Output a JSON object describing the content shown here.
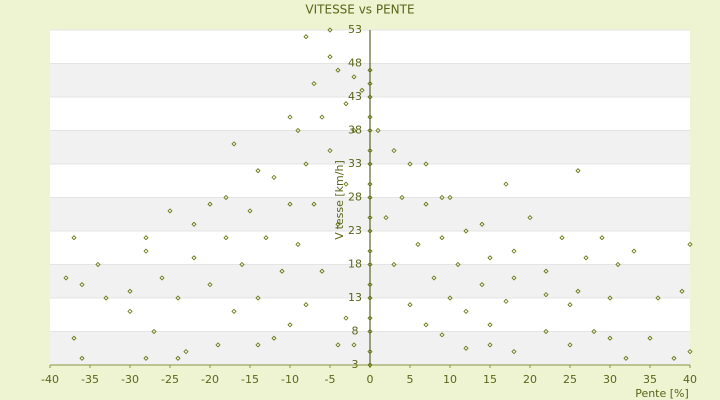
{
  "chart_data": {
    "type": "scatter",
    "title": "VITESSE vs PENTE",
    "xlabel": "Pente [%]",
    "ylabel": "Vitesse [km/h]",
    "color": "#5a6e00",
    "grid": true,
    "xlim": [
      -40,
      40
    ],
    "xticks": [
      -40,
      -35,
      -30,
      -25,
      -20,
      -15,
      -10,
      -5,
      0,
      5,
      10,
      15,
      20,
      25,
      30,
      35,
      40
    ],
    "ylim": [
      3,
      53
    ],
    "yticks": [
      3,
      8,
      13,
      18,
      23,
      28,
      33,
      38,
      43,
      48,
      53
    ],
    "x": [
      0,
      0,
      0,
      0,
      0,
      0,
      0,
      0,
      0,
      0,
      0,
      0,
      0,
      0,
      0,
      0,
      0,
      0,
      0,
      1,
      2,
      3,
      5,
      7,
      9,
      3,
      4,
      6,
      8,
      10,
      12,
      15,
      5,
      7,
      9,
      11,
      14,
      17,
      7,
      9,
      12,
      15,
      18,
      22,
      25,
      10,
      14,
      18,
      22,
      26,
      30,
      15,
      18,
      12,
      22,
      25,
      28,
      30,
      32,
      35,
      38,
      40,
      17,
      20,
      26,
      29,
      31,
      33,
      36,
      39,
      40,
      24,
      27,
      -1,
      -2,
      -3,
      -4,
      -6,
      -8,
      -10,
      -12,
      -2,
      -3,
      -5,
      -7,
      -9,
      -11,
      -14,
      -17,
      -4,
      -6,
      -8,
      -10,
      -13,
      -16,
      -20,
      -24,
      -5,
      -7,
      -9,
      -12,
      -15,
      -18,
      -22,
      -26,
      -30,
      -10,
      -14,
      -18,
      -22,
      -28,
      -34,
      -5,
      -8,
      -17,
      -20,
      -25,
      -28,
      -37,
      -36,
      -38,
      -33,
      -30,
      -27,
      -23,
      -19,
      -37,
      -36,
      -28,
      -14,
      -24,
      -3,
      -2,
      -4
    ],
    "values": [
      3,
      5,
      8,
      10,
      13,
      15,
      18,
      20,
      23,
      25,
      28,
      30,
      33,
      35,
      38,
      40,
      43,
      45,
      47,
      38,
      25,
      18,
      12,
      9,
      7.5,
      35,
      28,
      21,
      16,
      13,
      11,
      9,
      33,
      27,
      22,
      18,
      15,
      12.5,
      33,
      28,
      23,
      19,
      16,
      13.5,
      12,
      28,
      24,
      20,
      17,
      14,
      13,
      6,
      5,
      5.5,
      8,
      6,
      8,
      7,
      4,
      7,
      4,
      5,
      30,
      25,
      32,
      22,
      18,
      20,
      13,
      14,
      21,
      22,
      19,
      44,
      38,
      30,
      24,
      17,
      12,
      9,
      7,
      46,
      42,
      35,
      27,
      21,
      17,
      13,
      11,
      47,
      40,
      33,
      27,
      22,
      18,
      15,
      13,
      49,
      45,
      38,
      31,
      26,
      22,
      19,
      16,
      14,
      40,
      32,
      28,
      24,
      20,
      18,
      53,
      52,
      36,
      27,
      26,
      22,
      22,
      15,
      16,
      13,
      11,
      8,
      5,
      6,
      7,
      4,
      4,
      6,
      4,
      10,
      6,
      6
    ]
  }
}
